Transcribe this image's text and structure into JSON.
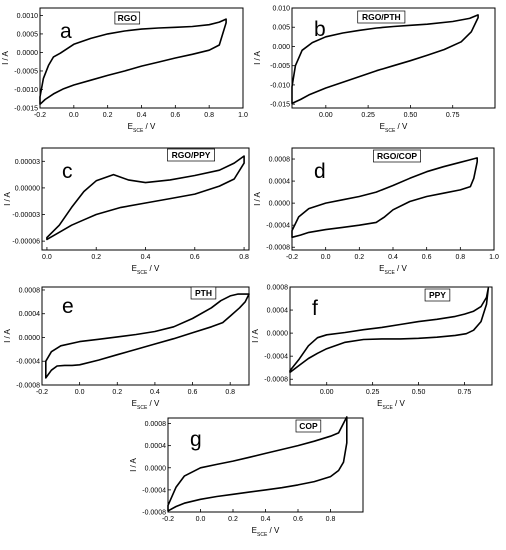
{
  "chart_data": [
    {
      "type": "line",
      "letter": "a",
      "title": "RGO",
      "xlabel": {
        "main": "E",
        "sub": "SCE",
        "unit": " / V"
      },
      "ylabel": "I / A",
      "xlim": [
        -0.2,
        1.0
      ],
      "ylim": [
        -0.0015,
        0.0012
      ],
      "xticks": [
        -0.2,
        0.0,
        0.2,
        0.4,
        0.6,
        0.8,
        1.0
      ],
      "xticklabels": [
        "-0.2",
        "0.0",
        "0.2",
        "0.4",
        "0.6",
        "0.8",
        "1.0"
      ],
      "yticks": [
        -0.0015,
        -0.001,
        -0.0005,
        0.0,
        0.0005,
        0.001
      ],
      "yticklabels": [
        "-0.0015",
        "-0.0010",
        "-0.0005",
        "0.0000",
        "0.0005",
        "0.0010"
      ],
      "series": [
        {
          "x": [
            -0.2,
            -0.17,
            -0.12,
            -0.06,
            0.0,
            0.1,
            0.2,
            0.3,
            0.4,
            0.5,
            0.6,
            0.7,
            0.8,
            0.86,
            0.88,
            0.9,
            0.9,
            0.86,
            0.8,
            0.7,
            0.6,
            0.5,
            0.4,
            0.3,
            0.2,
            0.1,
            0.0,
            -0.08,
            -0.12,
            -0.15,
            -0.18,
            -0.2
          ],
          "y": [
            -0.0014,
            -0.00127,
            -0.00112,
            -0.00098,
            -0.00088,
            -0.00075,
            -0.00062,
            -0.0005,
            -0.00037,
            -0.00026,
            -0.00015,
            -5e-05,
            6e-05,
            0.0002,
            0.0005,
            0.0008,
            0.0009,
            0.00082,
            0.00075,
            0.0007,
            0.00068,
            0.00066,
            0.00063,
            0.00058,
            0.0005,
            0.00038,
            0.00022,
            -2e-05,
            -0.00012,
            -0.00035,
            -0.0007,
            -0.0012
          ]
        }
      ]
    },
    {
      "type": "line",
      "letter": "b",
      "title": "RGO/PTH",
      "xlabel": {
        "main": "E",
        "sub": "SCE",
        "unit": " / V"
      },
      "ylabel": "I / A",
      "xlim": [
        -0.2,
        1.0
      ],
      "ylim": [
        -0.016,
        0.01
      ],
      "xticks": [
        0.0,
        0.25,
        0.5,
        0.75
      ],
      "xticklabels": [
        "0.00",
        "0.25",
        "0.50",
        "0.75"
      ],
      "yticks": [
        -0.015,
        -0.01,
        -0.005,
        0.0,
        0.005,
        0.01
      ],
      "yticklabels": [
        "-0.015",
        "-0.010",
        "-0.005",
        "0.000",
        "0.005",
        "0.010"
      ],
      "series": [
        {
          "x": [
            -0.2,
            -0.15,
            -0.1,
            0.0,
            0.1,
            0.2,
            0.3,
            0.4,
            0.5,
            0.6,
            0.7,
            0.8,
            0.86,
            0.9,
            0.9,
            0.85,
            0.75,
            0.6,
            0.5,
            0.4,
            0.3,
            0.2,
            0.1,
            0.0,
            -0.08,
            -0.14,
            -0.18,
            -0.2
          ],
          "y": [
            -0.0148,
            -0.0138,
            -0.0126,
            -0.0108,
            -0.0093,
            -0.0078,
            -0.0063,
            -0.005,
            -0.0037,
            -0.0023,
            -0.0008,
            0.0012,
            0.0038,
            0.0075,
            0.0082,
            0.0073,
            0.0065,
            0.0058,
            0.0055,
            0.0052,
            0.0048,
            0.0042,
            0.0035,
            0.0025,
            0.001,
            -0.001,
            -0.005,
            -0.0105
          ]
        }
      ]
    },
    {
      "type": "line",
      "letter": "c",
      "title": "RGO/PPY",
      "xlabel": {
        "main": "E",
        "sub": "SCE",
        "unit": " / V"
      },
      "ylabel": "I / A",
      "xlim": [
        -0.02,
        0.82
      ],
      "ylim": [
        -7e-05,
        4.5e-05
      ],
      "xticks": [
        0.0,
        0.2,
        0.4,
        0.6,
        0.8
      ],
      "xticklabels": [
        "0.0",
        "0.2",
        "0.4",
        "0.6",
        "0.8"
      ],
      "yticks": [
        -6e-05,
        -3e-05,
        0.0,
        3e-05
      ],
      "yticklabels": [
        "-0.00006",
        "-0.00003",
        "0.00000",
        "0.00003"
      ],
      "series": [
        {
          "x": [
            0.0,
            0.05,
            0.1,
            0.15,
            0.2,
            0.3,
            0.4,
            0.5,
            0.6,
            0.7,
            0.76,
            0.8,
            0.8,
            0.76,
            0.7,
            0.6,
            0.5,
            0.4,
            0.33,
            0.27,
            0.2,
            0.15,
            0.1,
            0.05,
            0.0
          ],
          "y": [
            -5.8e-05,
            -5e-05,
            -4.2e-05,
            -3.6e-05,
            -3e-05,
            -2.2e-05,
            -1.7e-05,
            -1.2e-05,
            -7e-06,
            2e-06,
            1e-05,
            2.8e-05,
            3.6e-05,
            2.8e-05,
            2e-05,
            1.4e-05,
            9e-06,
            6e-06,
            9e-06,
            1.5e-05,
            8e-06,
            -4e-06,
            -2.2e-05,
            -4.2e-05,
            -5.6e-05
          ]
        }
      ]
    },
    {
      "type": "line",
      "letter": "d",
      "title": "RGO/COP",
      "xlabel": {
        "main": "E",
        "sub": "SCE",
        "unit": " / V"
      },
      "ylabel": "I / A",
      "xlim": [
        -0.2,
        1.0
      ],
      "ylim": [
        -0.00085,
        0.001
      ],
      "xticks": [
        -0.2,
        0.0,
        0.2,
        0.4,
        0.6,
        0.8,
        1.0
      ],
      "xticklabels": [
        "-0.2",
        "0.0",
        "0.2",
        "0.4",
        "0.6",
        "0.8",
        "1.0"
      ],
      "yticks": [
        -0.0008,
        -0.0004,
        0.0,
        0.0004,
        0.0008
      ],
      "yticklabels": [
        "-0.0008",
        "-0.0004",
        "0.0000",
        "0.0004",
        "0.0008"
      ],
      "series": [
        {
          "x": [
            -0.2,
            -0.15,
            -0.1,
            0.0,
            0.1,
            0.2,
            0.3,
            0.35,
            0.4,
            0.5,
            0.6,
            0.7,
            0.8,
            0.86,
            0.88,
            0.9,
            0.9,
            0.85,
            0.8,
            0.7,
            0.6,
            0.5,
            0.4,
            0.3,
            0.2,
            0.1,
            0.0,
            -0.1,
            -0.16,
            -0.2
          ],
          "y": [
            -0.00062,
            -0.00058,
            -0.00053,
            -0.00048,
            -0.00044,
            -0.0004,
            -0.00035,
            -0.00025,
            -0.00012,
            3e-05,
            0.00012,
            0.00018,
            0.00024,
            0.0003,
            0.00045,
            0.00075,
            0.00082,
            0.00078,
            0.00074,
            0.00066,
            0.00057,
            0.00045,
            0.00032,
            0.0002,
            0.00012,
            6e-05,
            0.0,
            -0.0001,
            -0.00025,
            -0.0005
          ]
        }
      ]
    },
    {
      "type": "line",
      "letter": "e",
      "title": "PTH",
      "xlabel": {
        "main": "E",
        "sub": "SCE",
        "unit": " / V"
      },
      "ylabel": "I / A",
      "xlim": [
        -0.2,
        0.9
      ],
      "ylim": [
        -0.0008,
        0.00085
      ],
      "xticks": [
        -0.2,
        0.0,
        0.2,
        0.4,
        0.6,
        0.8
      ],
      "xticklabels": [
        "-0.2",
        "0.0",
        "0.2",
        "0.4",
        "0.6",
        "0.8"
      ],
      "yticks": [
        -0.0008,
        -0.0004,
        0.0,
        0.0004,
        0.0008
      ],
      "yticklabels": [
        "-0.0008",
        "-0.0004",
        "0.0000",
        "0.0004",
        "0.0008"
      ],
      "series": [
        {
          "x": [
            -0.18,
            -0.15,
            -0.12,
            -0.08,
            -0.04,
            0.0,
            0.1,
            0.2,
            0.3,
            0.4,
            0.5,
            0.6,
            0.7,
            0.76,
            0.8,
            0.85,
            0.88,
            0.9,
            0.88,
            0.84,
            0.8,
            0.75,
            0.7,
            0.6,
            0.5,
            0.4,
            0.3,
            0.2,
            0.1,
            0.0,
            -0.1,
            -0.15,
            -0.18
          ],
          "y": [
            -0.00068,
            -0.00055,
            -0.00048,
            -0.00047,
            -0.00047,
            -0.00046,
            -0.00038,
            -0.00029,
            -0.0002,
            -0.00011,
            -2e-05,
            8e-05,
            0.00018,
            0.00025,
            0.00036,
            0.0005,
            0.0006,
            0.00073,
            0.00073,
            0.00073,
            0.0007,
            0.00062,
            0.0005,
            0.00032,
            0.00018,
            0.0001,
            5e-05,
            1e-05,
            -3e-05,
            -7e-05,
            -0.00014,
            -0.00024,
            -0.0004
          ]
        }
      ]
    },
    {
      "type": "line",
      "letter": "f",
      "title": "PPY",
      "xlabel": {
        "main": "E",
        "sub": "SCE",
        "unit": " / V"
      },
      "ylabel": "I / A",
      "xlim": [
        -0.2,
        0.9
      ],
      "ylim": [
        -0.0009,
        0.0008
      ],
      "xticks": [
        0.0,
        0.25,
        0.5,
        0.75
      ],
      "xticklabels": [
        "0.00",
        "0.25",
        "0.50",
        "0.75"
      ],
      "yticks": [
        -0.0008,
        -0.0004,
        0.0,
        0.0004,
        0.0008
      ],
      "yticklabels": [
        "-0.0008",
        "-0.0004",
        "0.0000",
        "0.0004",
        "0.0008"
      ],
      "series": [
        {
          "x": [
            -0.2,
            -0.15,
            -0.1,
            -0.05,
            0.0,
            0.1,
            0.2,
            0.3,
            0.4,
            0.5,
            0.6,
            0.7,
            0.76,
            0.8,
            0.84,
            0.87,
            0.88,
            0.87,
            0.84,
            0.8,
            0.75,
            0.7,
            0.6,
            0.5,
            0.4,
            0.3,
            0.2,
            0.1,
            0.0,
            -0.05,
            -0.1,
            -0.15,
            -0.2
          ],
          "y": [
            -0.00068,
            -0.00056,
            -0.00044,
            -0.00035,
            -0.00027,
            -0.00016,
            -0.00011,
            -0.0001,
            -0.0001,
            -9e-05,
            -7e-05,
            -4e-05,
            -1e-05,
            5e-05,
            0.0002,
            0.0005,
            0.00078,
            0.00062,
            0.00046,
            0.00038,
            0.00033,
            0.00029,
            0.00024,
            0.0002,
            0.00015,
            0.0001,
            6e-05,
            1e-05,
            -3e-05,
            -8e-05,
            -0.00022,
            -0.00045,
            -0.00065
          ]
        }
      ]
    },
    {
      "type": "line",
      "letter": "g",
      "title": "COP",
      "xlabel": {
        "main": "E",
        "sub": "SCE",
        "unit": " / V"
      },
      "ylabel": "I / A",
      "xlim": [
        -0.2,
        1.0
      ],
      "ylim": [
        -0.0008,
        0.0009
      ],
      "xticks": [
        -0.2,
        0.0,
        0.2,
        0.4,
        0.6,
        0.8
      ],
      "xticklabels": [
        "-0.2",
        "0.0",
        "0.2",
        "0.4",
        "0.6",
        "0.8"
      ],
      "yticks": [
        -0.0008,
        -0.0004,
        0.0,
        0.0004,
        0.0008
      ],
      "yticklabels": [
        "-0.0008",
        "-0.0004",
        "0.0000",
        "0.0004",
        "0.0008"
      ],
      "series": [
        {
          "x": [
            -0.2,
            -0.15,
            -0.1,
            0.0,
            0.1,
            0.2,
            0.3,
            0.4,
            0.5,
            0.6,
            0.7,
            0.8,
            0.85,
            0.88,
            0.9,
            0.9,
            0.85,
            0.8,
            0.7,
            0.6,
            0.5,
            0.4,
            0.3,
            0.2,
            0.1,
            0.0,
            -0.1,
            -0.15,
            -0.2
          ],
          "y": [
            -0.00078,
            -0.0007,
            -0.00064,
            -0.00057,
            -0.00052,
            -0.00048,
            -0.00044,
            -0.0004,
            -0.00036,
            -0.00031,
            -0.00025,
            -0.00016,
            -5e-05,
            0.0001,
            0.00045,
            0.00092,
            0.00063,
            0.00057,
            0.00048,
            0.0004,
            0.00033,
            0.00026,
            0.00019,
            0.00012,
            6e-05,
            0.0,
            -0.00015,
            -0.00035,
            -0.00068
          ]
        }
      ]
    }
  ]
}
